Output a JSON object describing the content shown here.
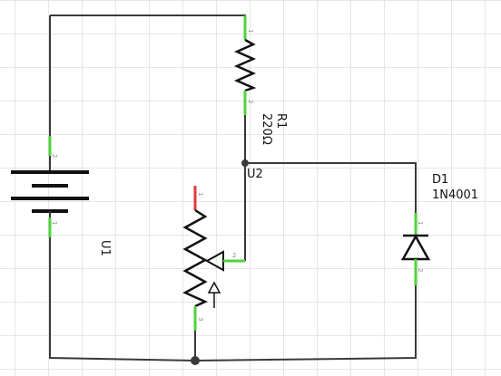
{
  "colors": {
    "wire": "#3a3a3a",
    "symbol": "#111111",
    "pin_connected": "#4ed43a",
    "pin_unconnected": "#e23b3b",
    "grid": "#e6e6e6",
    "pin_text": "#888888"
  },
  "components": {
    "battery": {
      "ref": "U1",
      "pin_top": "2",
      "pin_bottom": "1"
    },
    "resistor": {
      "ref": "R1",
      "value": "220Ω",
      "pin_top": "1",
      "pin_bottom": "2"
    },
    "potentiometer": {
      "ref": "U2",
      "pin_top": "1",
      "pin_wiper": "2",
      "pin_bottom": "3"
    },
    "diode": {
      "ref": "D1",
      "value": "1N4001",
      "pin_top": "1",
      "pin_bottom": "2"
    }
  }
}
